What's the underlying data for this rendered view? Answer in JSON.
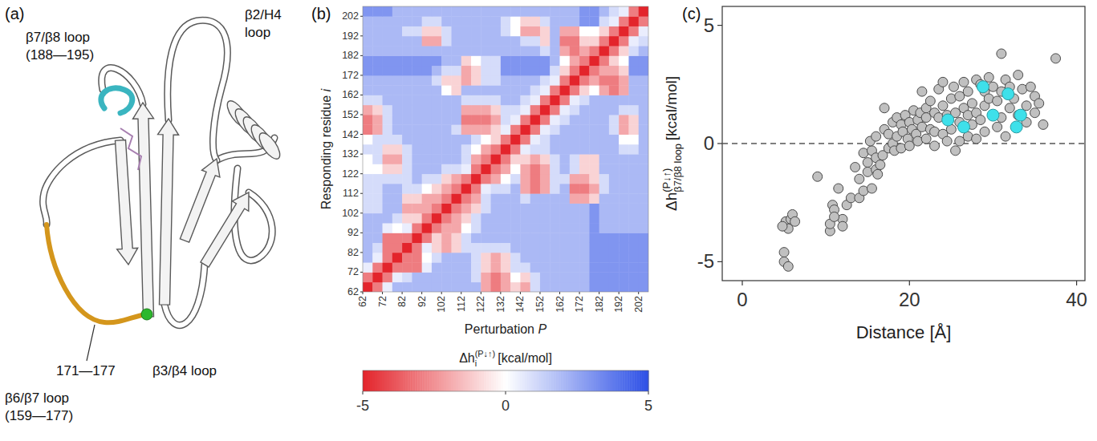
{
  "panel_a": {
    "letter": "(a)",
    "labels": [
      {
        "lines": [
          "β7/β8 loop",
          "(188—195)"
        ]
      },
      {
        "lines": [
          "β2/H4",
          "loop"
        ]
      },
      {
        "lines": [
          "171—177"
        ]
      },
      {
        "lines": [
          "β3/β4 loop"
        ]
      },
      {
        "lines": [
          "β6/β7 loop",
          "(159—177)"
        ]
      }
    ]
  },
  "chart_data": [
    {
      "type": "heatmap",
      "panel": "(b)",
      "x_label": {
        "text": "Perturbation",
        "var": "P"
      },
      "y_label": {
        "text": "Responding residue",
        "var": "i"
      },
      "x": [
        62,
        67,
        72,
        77,
        82,
        87,
        92,
        97,
        102,
        107,
        112,
        117,
        122,
        127,
        132,
        137,
        142,
        147,
        152,
        157,
        162,
        167,
        172,
        177,
        182,
        187,
        192,
        197,
        202
      ],
      "y": [
        62,
        67,
        72,
        77,
        82,
        87,
        92,
        97,
        102,
        107,
        112,
        117,
        122,
        127,
        132,
        137,
        142,
        147,
        152,
        157,
        162,
        167,
        172,
        177,
        182,
        187,
        192,
        197,
        202
      ],
      "xlim": [
        62,
        207
      ],
      "ylim": [
        62,
        207
      ],
      "xticks": [
        62,
        72,
        82,
        92,
        102,
        112,
        122,
        132,
        142,
        152,
        162,
        172,
        182,
        192,
        202
      ],
      "yticks": [
        62,
        72,
        82,
        92,
        102,
        112,
        122,
        132,
        142,
        152,
        162,
        172,
        182,
        192,
        202
      ],
      "z": [
        [
          -5,
          -3,
          0.5,
          2,
          2,
          2,
          2,
          2,
          2,
          2,
          2,
          2,
          -2,
          -3,
          -2,
          -1,
          -2,
          1,
          2,
          2,
          2,
          2,
          2,
          3,
          3,
          3,
          3,
          3,
          3
        ],
        [
          -3,
          -5,
          -3,
          0.5,
          1,
          2,
          2,
          2,
          2,
          2,
          2,
          1,
          -2,
          -3,
          -2,
          0,
          -1,
          1,
          2,
          2,
          2,
          2,
          2,
          3,
          3,
          3,
          3,
          3,
          3
        ],
        [
          0.5,
          -3,
          -5,
          -3,
          -3,
          -3,
          0.5,
          2,
          2,
          2,
          2,
          1,
          -1,
          -2,
          -1,
          1,
          1,
          2,
          2,
          2,
          2,
          2,
          2,
          3,
          3,
          3,
          3,
          3,
          3
        ],
        [
          2,
          0.5,
          -3,
          -5,
          -3,
          -3,
          0,
          1,
          2,
          2,
          2,
          1,
          -1,
          -2,
          -1,
          1,
          2,
          2,
          2,
          2,
          2,
          2,
          2,
          3,
          3,
          3,
          3,
          3,
          3
        ],
        [
          2,
          1,
          -3,
          -3,
          -5,
          -3,
          0.5,
          -1,
          -2,
          -1,
          1,
          1,
          1,
          1,
          1,
          2,
          2,
          2,
          2,
          2,
          2,
          2,
          2,
          3,
          3,
          3,
          3,
          3,
          3
        ],
        [
          2,
          2,
          -3,
          -3,
          -3,
          -5,
          -3,
          -1,
          -2,
          -1,
          1,
          2,
          2,
          2,
          2,
          2,
          2,
          2,
          2,
          2,
          2,
          2,
          2,
          3,
          3,
          3,
          3,
          3,
          3
        ],
        [
          2,
          2,
          0.5,
          0,
          0.5,
          -3,
          -5,
          -3,
          -2,
          -2,
          0,
          1,
          2,
          2,
          2,
          2,
          2,
          2,
          2,
          2,
          2,
          2,
          2,
          3,
          2,
          2,
          2,
          2,
          2
        ],
        [
          2,
          2,
          2,
          1,
          -1,
          -1,
          -3,
          -5,
          -3,
          -2,
          -1,
          1,
          2,
          2,
          2,
          2,
          2,
          2,
          2,
          2,
          2,
          2,
          2,
          3,
          2,
          2,
          2,
          2,
          2
        ],
        [
          1,
          1,
          2,
          2,
          -2,
          -2,
          -2,
          -3,
          -5,
          -3,
          -2,
          -1,
          1,
          2,
          2,
          2,
          2,
          2,
          2,
          2,
          2,
          2,
          2,
          3,
          2,
          2,
          2,
          2,
          2
        ],
        [
          1,
          1,
          2,
          2,
          -1,
          -1,
          -2,
          -2,
          -3,
          -5,
          -3,
          -2,
          1,
          2,
          2,
          2,
          1,
          2,
          2,
          2,
          2,
          -2,
          -2,
          -1,
          2,
          2,
          2,
          2,
          2
        ],
        [
          1,
          1,
          2,
          2,
          1,
          1,
          0,
          -1,
          -2,
          -3,
          -5,
          -3,
          0.5,
          1,
          1,
          2,
          -2,
          -3,
          -2,
          1,
          2,
          -3,
          -3,
          -2,
          1,
          2,
          2,
          2,
          2
        ],
        [
          1,
          1,
          1,
          1,
          1,
          2,
          1,
          1,
          -1,
          -2,
          -3,
          -5,
          -3,
          -2,
          0,
          1,
          -2,
          -3,
          -2,
          1,
          1,
          -2,
          -2,
          -1,
          1,
          2,
          2,
          2,
          2
        ],
        [
          0,
          0,
          -1,
          -1,
          1,
          2,
          2,
          2,
          1,
          1,
          0.5,
          -3,
          -5,
          -3,
          -2,
          0,
          -2,
          -3,
          -2,
          1,
          2,
          1,
          -1,
          -1,
          2,
          2,
          2,
          2,
          2
        ],
        [
          0,
          1,
          -2,
          -2,
          1,
          2,
          2,
          2,
          2,
          2,
          1,
          -2,
          -3,
          -5,
          -3,
          -1,
          -1,
          -2,
          -1,
          1,
          2,
          1,
          -1,
          -1,
          2,
          2,
          2,
          2,
          2
        ],
        [
          1,
          1,
          -1,
          -1,
          1,
          2,
          2,
          2,
          2,
          2,
          1,
          0,
          -2,
          -3,
          -5,
          -3,
          0.5,
          1,
          1,
          2,
          2,
          2,
          2,
          2,
          2,
          2,
          1,
          1,
          2
        ],
        [
          0,
          1,
          1,
          1,
          2,
          2,
          2,
          2,
          2,
          2,
          2,
          1,
          0,
          -1,
          -3,
          -5,
          -3,
          0.5,
          1,
          2,
          2,
          2,
          2,
          2,
          2,
          2,
          0,
          0,
          2
        ],
        [
          -3,
          -2,
          1,
          2,
          2,
          2,
          2,
          2,
          2,
          1,
          -2,
          -2,
          -2,
          -1,
          0.5,
          -3,
          -5,
          -3,
          0.5,
          1,
          2,
          2,
          2,
          2,
          2,
          1,
          -2,
          -1,
          2
        ],
        [
          -3,
          -2,
          1,
          2,
          2,
          2,
          2,
          2,
          2,
          2,
          -3,
          -3,
          -3,
          -2,
          1,
          0.5,
          -3,
          -5,
          -3,
          0.5,
          1,
          2,
          2,
          2,
          2,
          1,
          -2,
          -1,
          2
        ],
        [
          -2,
          -1,
          1,
          2,
          2,
          2,
          2,
          2,
          2,
          2,
          -2,
          -2,
          -2,
          -1,
          1,
          1,
          0.5,
          -3,
          -5,
          -3,
          0.5,
          1,
          2,
          2,
          2,
          2,
          1,
          1,
          2
        ],
        [
          1,
          1,
          2,
          2,
          2,
          2,
          2,
          2,
          2,
          2,
          1,
          1,
          1,
          1,
          2,
          2,
          1,
          0.5,
          -3,
          -5,
          -3,
          0.5,
          1,
          2,
          2,
          2,
          2,
          2,
          2
        ],
        [
          2,
          2,
          2,
          2,
          2,
          2,
          2,
          2,
          0,
          -1,
          2,
          2,
          2,
          2,
          2,
          2,
          2,
          1,
          0.5,
          -3,
          -5,
          -3,
          -1,
          0,
          -2,
          -3,
          -2,
          2,
          2
        ],
        [
          2,
          2,
          2,
          2,
          2,
          2,
          2,
          1,
          -1,
          -1,
          -2,
          -1,
          1,
          1,
          2,
          2,
          2,
          2,
          1,
          0.5,
          -3,
          -5,
          -3,
          -2,
          -3,
          -3,
          -2,
          2,
          2
        ],
        [
          3,
          3,
          3,
          3,
          3,
          3,
          3,
          2,
          1,
          1,
          -2,
          -1,
          1,
          1,
          3,
          3,
          3,
          3,
          3,
          1,
          -1,
          -3,
          -5,
          -3,
          -2,
          -2,
          -1,
          3,
          3
        ],
        [
          3,
          3,
          3,
          3,
          3,
          3,
          3,
          3,
          2,
          2,
          -1,
          0,
          1,
          1,
          3,
          3,
          3,
          3,
          3,
          2,
          0,
          -2,
          -3,
          -5,
          -3,
          -1,
          0,
          3,
          3
        ],
        [
          2,
          2,
          2,
          2,
          2,
          2,
          2,
          2,
          2,
          2,
          2,
          2,
          2,
          2,
          2,
          2,
          2,
          2,
          1,
          2,
          -2,
          -3,
          -2,
          -3,
          -5,
          -3,
          -1,
          1,
          2
        ],
        [
          2,
          2,
          2,
          2,
          2,
          2,
          -2,
          -2,
          1,
          2,
          2,
          2,
          2,
          2,
          2,
          2,
          1,
          1,
          -1,
          2,
          -3,
          -3,
          -1,
          -1,
          -3,
          -5,
          -3,
          0.5,
          1
        ],
        [
          2,
          2,
          2,
          2,
          1,
          1,
          -1,
          -1,
          1,
          2,
          2,
          2,
          2,
          2,
          1,
          0,
          -2,
          -2,
          -1,
          2,
          -2,
          -2,
          0,
          0,
          -1,
          -3,
          -5,
          -3,
          0.5
        ],
        [
          2,
          2,
          2,
          2,
          2,
          2,
          1,
          1,
          2,
          2,
          2,
          2,
          2,
          2,
          1,
          0,
          -1,
          -1,
          1,
          2,
          2,
          2,
          3,
          3,
          1,
          0.5,
          -3,
          -5,
          -3
        ],
        [
          3,
          3,
          3,
          2,
          2,
          2,
          2,
          2,
          2,
          2,
          2,
          2,
          2,
          2,
          2,
          2,
          2,
          2,
          2,
          2,
          2,
          2,
          3,
          3,
          2,
          1,
          0.5,
          -3,
          -5
        ]
      ],
      "colorbar": {
        "label": {
          "text": "Δh",
          "sub": "i",
          "sup": "(P↓↑)",
          "unit": "[kcal/mol]"
        },
        "range": [
          -5,
          5
        ],
        "ticks": [
          -5,
          0,
          5
        ],
        "colors": [
          "#e3242b",
          "#ffffff",
          "#2c4fe6"
        ]
      }
    },
    {
      "type": "scatter",
      "panel": "(c)",
      "x_label": "Distance [Å]",
      "y_label": {
        "text": "Δh",
        "sub": "β7/β8 loop",
        "sup": "(P↓↑)",
        "unit": "[kcal/mol]"
      },
      "xlim": [
        -2.4,
        41
      ],
      "ylim": [
        -5.8,
        5.8
      ],
      "xticks": [
        0,
        20,
        40
      ],
      "yticks": [
        -5,
        0,
        5
      ],
      "reference_y": 0,
      "series": [
        {
          "color": "#c0c0c0",
          "marker": "circle",
          "x": [
            5,
            5,
            5.5,
            5.2,
            5.8,
            6,
            5.5,
            6.3,
            4.8,
            9,
            10.5,
            10.5,
            10.8,
            11,
            12,
            12.5,
            11.5,
            12,
            13,
            11,
            13.5,
            14,
            14,
            14.5,
            14.5,
            15,
            15,
            15.5,
            15.5,
            15.3,
            16,
            16,
            16,
            16.2,
            16.5,
            16.8,
            17,
            17,
            17.5,
            17.5,
            18,
            18,
            18.2,
            18.5,
            18.5,
            19,
            19,
            19.2,
            19.5,
            19.8,
            20,
            20,
            20.3,
            20.5,
            20.8,
            21,
            21,
            21.3,
            21.5,
            21.5,
            22,
            22,
            22,
            22.5,
            22.5,
            23,
            23,
            23,
            23.5,
            23.5,
            24,
            24,
            24,
            24.5,
            24.5,
            25,
            25,
            25.3,
            25.5,
            25.5,
            26,
            26,
            26,
            26.5,
            26.5,
            27,
            27,
            27,
            27.5,
            27.5,
            28,
            28,
            28,
            28.5,
            28.5,
            29,
            29,
            29,
            29.5,
            29.5,
            30,
            30,
            30.5,
            30.5,
            31,
            31,
            31,
            31.5,
            31.5,
            32,
            32,
            32.5,
            33,
            33,
            33.5,
            34,
            34,
            34.5,
            35,
            35,
            35.5,
            36,
            37.5
          ],
          "values": [
            -4.6,
            -5,
            -5.2,
            -3.3,
            -3.2,
            -3,
            -3.6,
            -3.3,
            -3.5,
            -1.4,
            -3.7,
            -3.4,
            -2.6,
            -2.8,
            -3.2,
            -2.6,
            -1.9,
            -3.5,
            -2.3,
            -3.1,
            -1,
            -1.5,
            -2.3,
            -2,
            -0.4,
            -0.8,
            -1.2,
            -0.3,
            -1.9,
            0.1,
            -0.6,
            -1.1,
            0.3,
            -1.3,
            -0.9,
            -0.5,
            0.6,
            1.5,
            -0.2,
            0.4,
            0,
            0.9,
            -0.3,
            0.3,
            1.1,
            0.8,
            -0.2,
            0.5,
            1.2,
            0.2,
            0.9,
            -0.1,
            0.6,
            1.4,
            0.4,
            1,
            0.1,
            1.3,
            0.7,
            2.2,
            1.5,
            0.2,
            1.1,
            0.6,
            1.8,
            1.3,
            0.5,
            -0.1,
            1.1,
            2.3,
            1.6,
            0.4,
            2.6,
            1.2,
            0.1,
            1.9,
            0.6,
            2.4,
            1.3,
            -0.3,
            2,
            0.9,
            0.1,
            1.5,
            2.6,
            1.2,
            0.3,
            2.2,
            1.7,
            0.8,
            2.7,
            1.3,
            0.2,
            2.5,
            1,
            2.2,
            1.6,
            0.5,
            1.9,
            2.8,
            1.2,
            2.4,
            0.7,
            1.8,
            2.2,
            3.8,
            1.1,
            0.3,
            2.7,
            1.5,
            2.4,
            1.9,
            2.9,
            1.2,
            2.3,
            1.6,
            0.9,
            2.4,
            1.3,
            2,
            1.7,
            0.8,
            3.6
          ]
        },
        {
          "color": "#3ee0ea",
          "marker": "circle",
          "x": [
            24.6,
            26.5,
            28.8,
            30,
            31.8,
            32.8,
            33.3
          ],
          "values": [
            1,
            0.7,
            2.4,
            1.2,
            2.1,
            0.7,
            1.2
          ]
        }
      ]
    }
  ]
}
